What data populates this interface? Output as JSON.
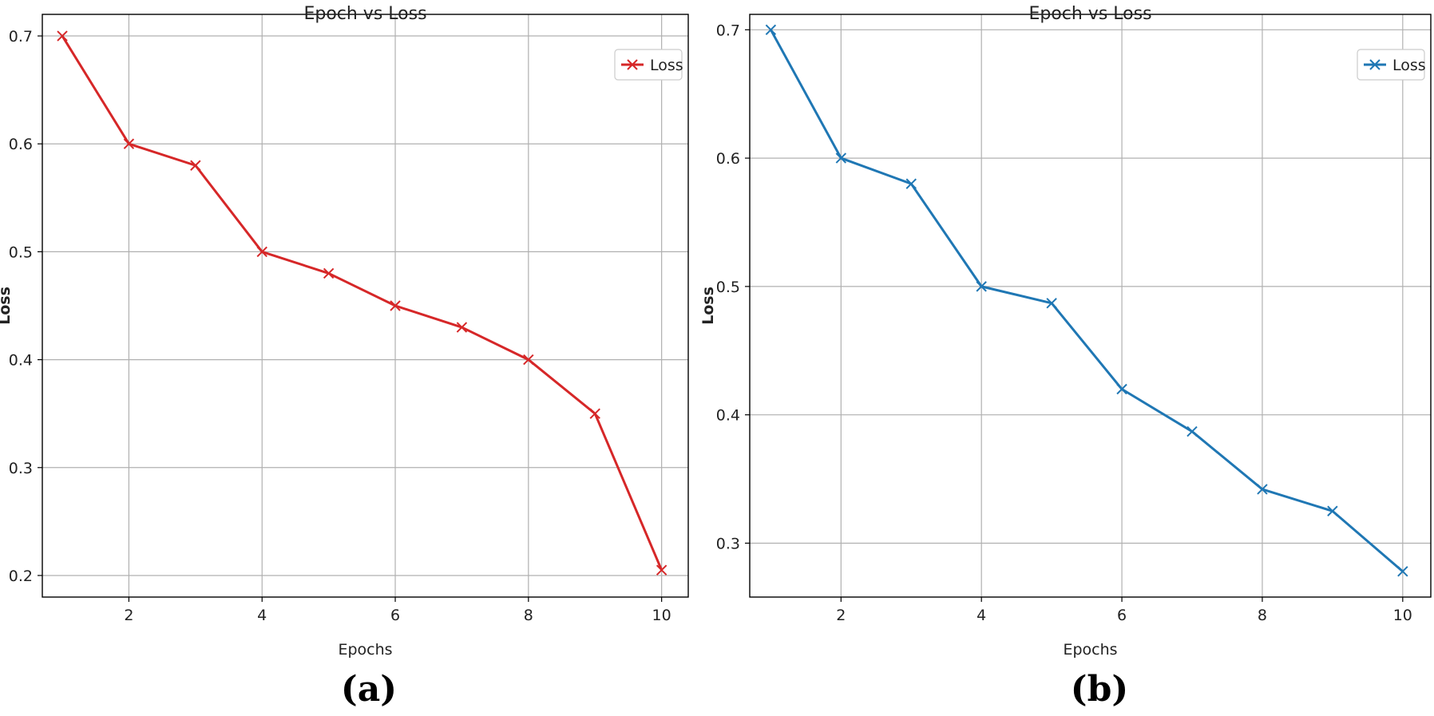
{
  "chart_data": [
    {
      "type": "line",
      "panel_label": "(a)",
      "title": "Epoch vs Loss",
      "xlabel": "Epochs",
      "ylabel": "Loss",
      "xlim": [
        0.7,
        10.4
      ],
      "ylim": [
        0.18,
        0.72
      ],
      "xticks": [
        2,
        4,
        6,
        8,
        10
      ],
      "yticks": [
        0.2,
        0.3,
        0.4,
        0.5,
        0.6,
        0.7
      ],
      "grid": true,
      "legend": "top-right",
      "color": "#d62728",
      "marker": "x",
      "series": [
        {
          "name": "Loss",
          "x": [
            1,
            2,
            3,
            4,
            5,
            6,
            7,
            8,
            9,
            10
          ],
          "y": [
            0.7,
            0.6,
            0.58,
            0.5,
            0.48,
            0.45,
            0.43,
            0.4,
            0.35,
            0.205
          ]
        }
      ]
    },
    {
      "type": "line",
      "panel_label": "(b)",
      "title": "Epoch vs Loss",
      "xlabel": "Epochs",
      "ylabel": "Loss",
      "xlim": [
        0.7,
        10.4
      ],
      "ylim": [
        0.258,
        0.712
      ],
      "xticks": [
        2,
        4,
        6,
        8,
        10
      ],
      "yticks": [
        0.3,
        0.4,
        0.5,
        0.6,
        0.7
      ],
      "grid": true,
      "legend": "top-right",
      "color": "#1f77b4",
      "marker": "x",
      "series": [
        {
          "name": "Loss",
          "x": [
            1,
            2,
            3,
            4,
            5,
            6,
            7,
            8,
            9,
            10
          ],
          "y": [
            0.7,
            0.6,
            0.58,
            0.5,
            0.487,
            0.42,
            0.387,
            0.342,
            0.325,
            0.278
          ]
        }
      ]
    }
  ]
}
